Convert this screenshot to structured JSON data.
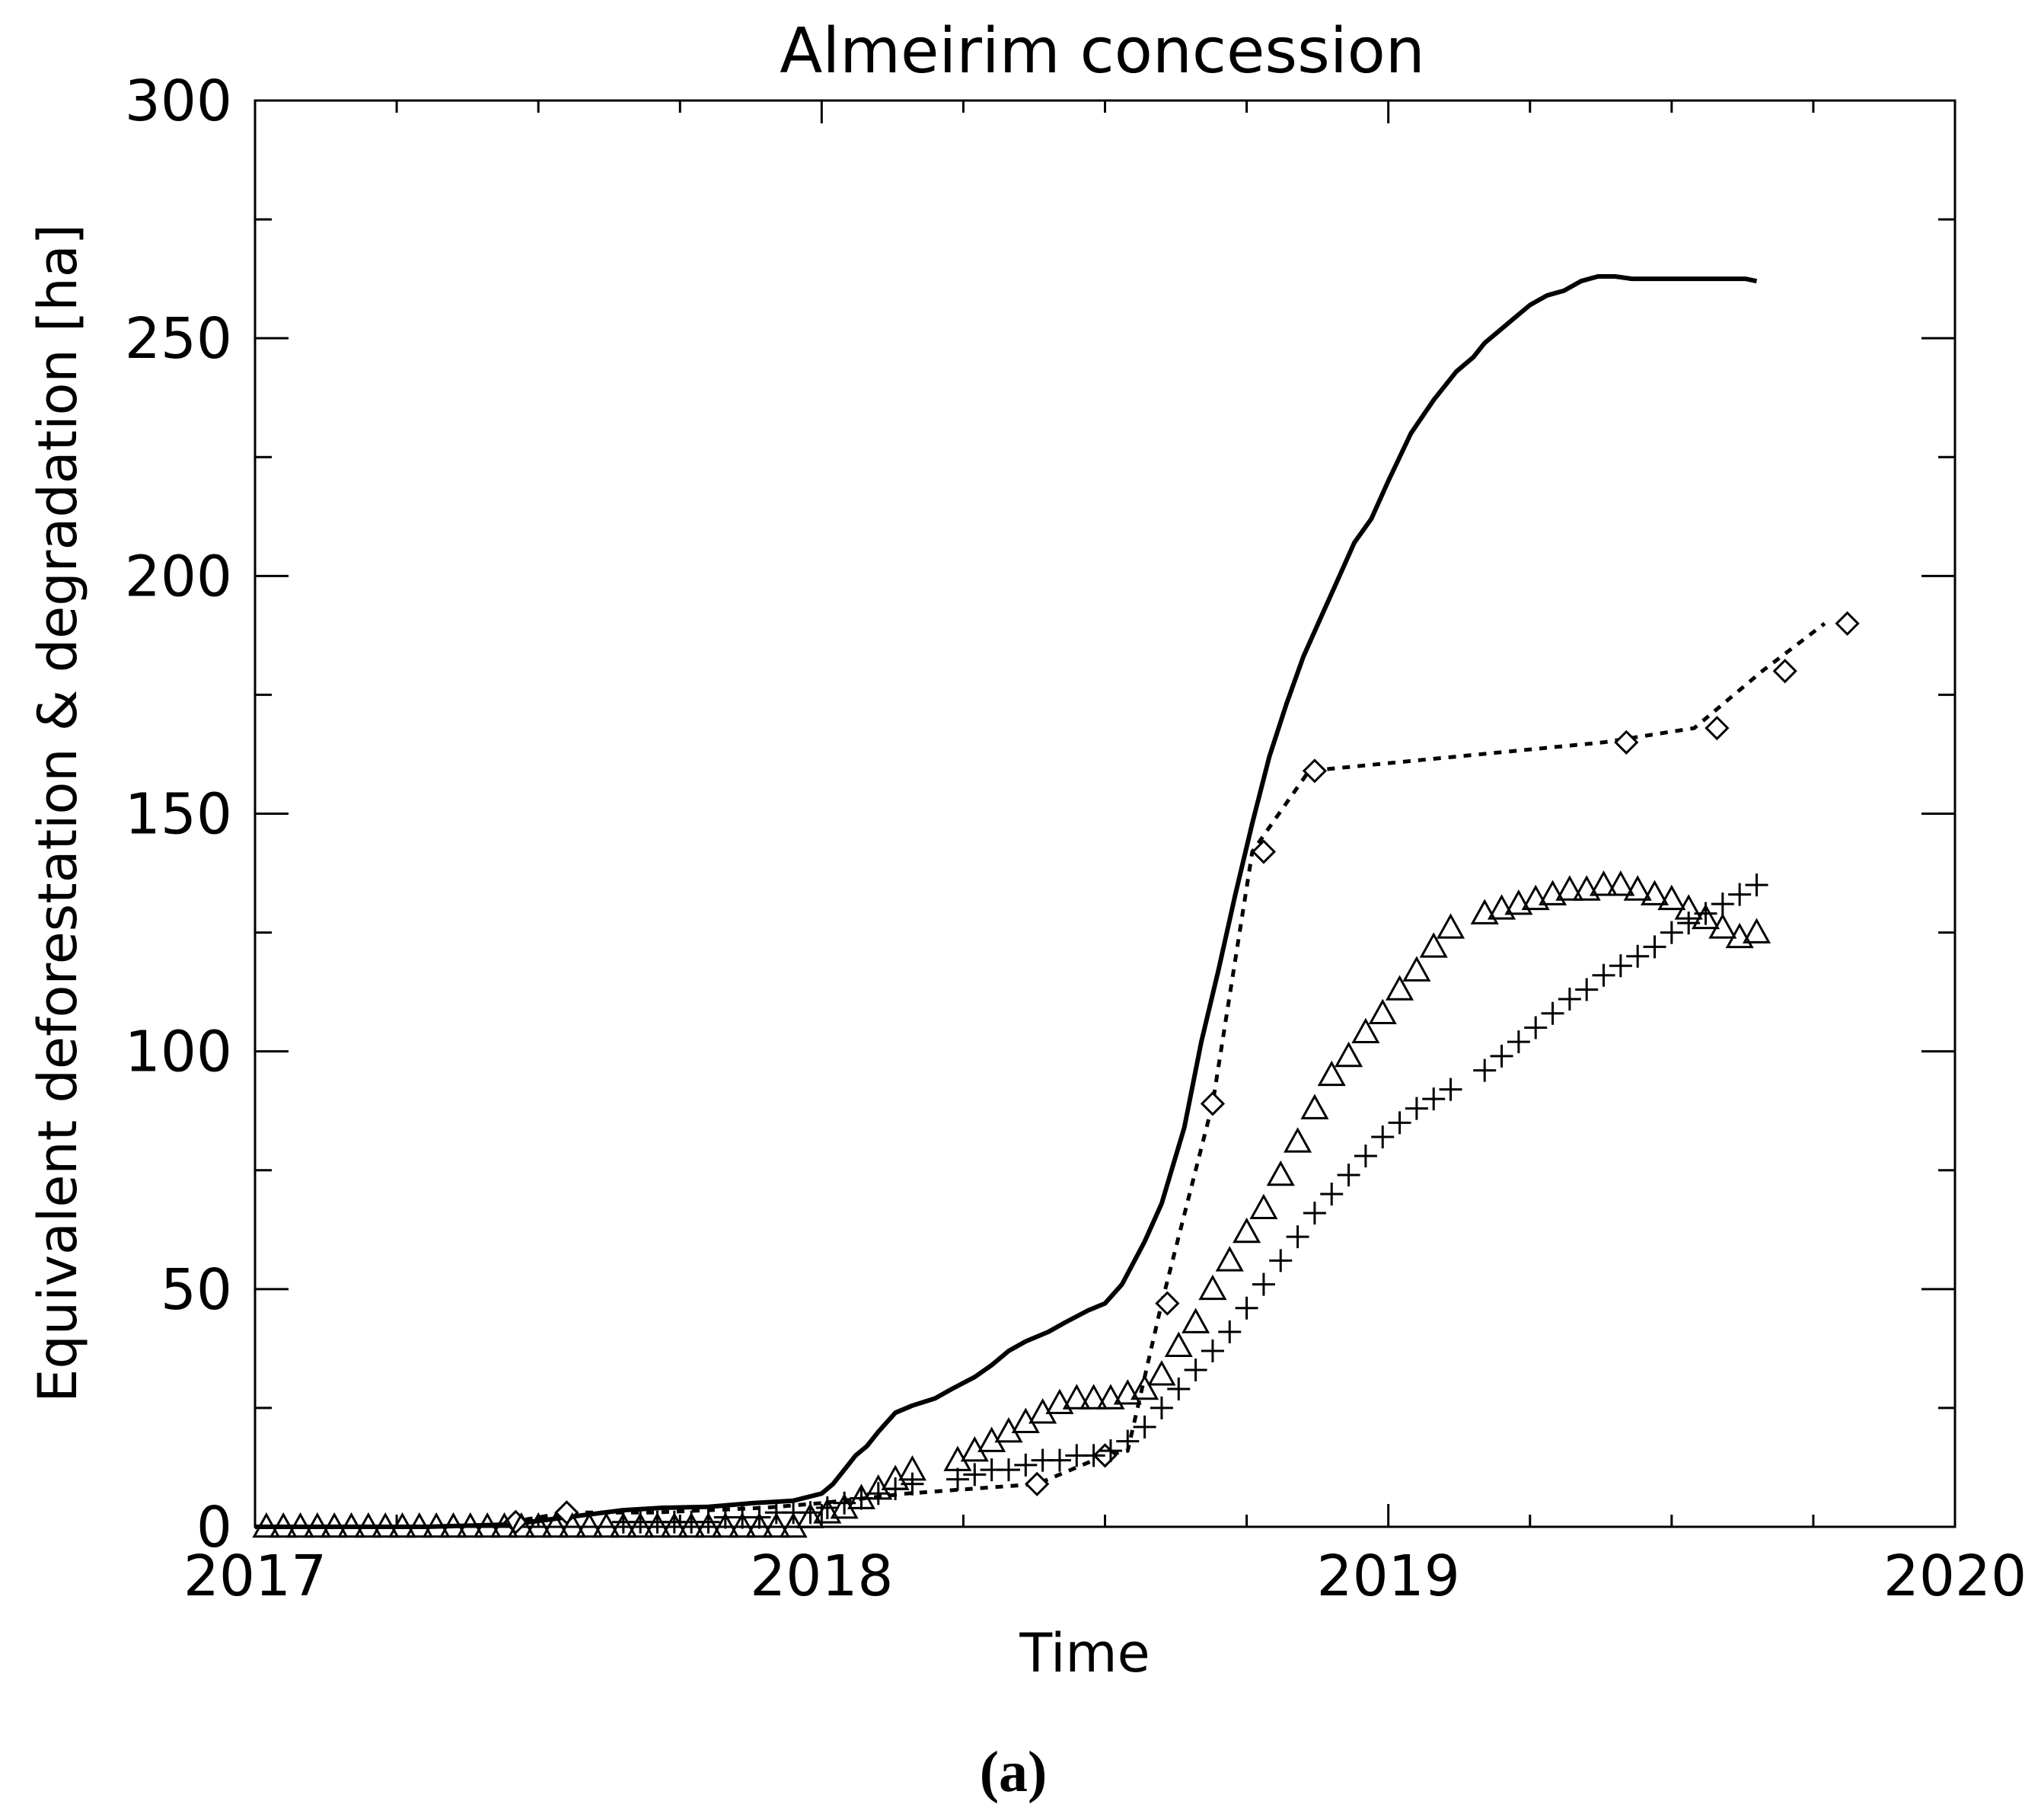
{
  "chart_data": {
    "type": "line",
    "title": "Almeirim concession",
    "xlabel": "Time",
    "ylabel": "Equivalent deforestation & degradation [ha]",
    "panel_label": "(a)",
    "xlim": [
      2017,
      2020
    ],
    "ylim": [
      0,
      300
    ],
    "x_ticks": [
      2017,
      2018,
      2019,
      2020
    ],
    "x_tick_labels": [
      "2017",
      "2018",
      "2019",
      "2020"
    ],
    "x_minor_step": 0.25,
    "y_ticks": [
      0,
      50,
      100,
      150,
      200,
      250,
      300
    ],
    "y_tick_labels": [
      "0",
      "50",
      "100",
      "150",
      "200",
      "250",
      "300"
    ],
    "y_minor_step": 25,
    "grid": false,
    "series": [
      {
        "name": "solid line",
        "style": "solid",
        "marker": "none",
        "x": [
          2017.0,
          2017.3,
          2017.45,
          2017.55,
          2017.65,
          2017.72,
          2017.8,
          2017.88,
          2017.95,
          2018.0,
          2018.02,
          2018.04,
          2018.06,
          2018.08,
          2018.1,
          2018.13,
          2018.16,
          2018.2,
          2018.23,
          2018.27,
          2018.3,
          2018.33,
          2018.36,
          2018.4,
          2018.43,
          2018.47,
          2018.5,
          2018.53,
          2018.57,
          2018.6,
          2018.64,
          2018.67,
          2018.7,
          2018.73,
          2018.76,
          2018.79,
          2018.82,
          2018.85,
          2018.88,
          2018.91,
          2018.94,
          2018.97,
          2019.0,
          2019.04,
          2019.08,
          2019.1,
          2019.12,
          2019.15,
          2019.17,
          2019.19,
          2019.22,
          2019.25,
          2019.28,
          2019.31,
          2019.34,
          2019.37,
          2019.4,
          2019.43,
          2019.46,
          2019.49,
          2019.52,
          2019.55,
          2019.58,
          2019.61,
          2019.63,
          2019.65
        ],
        "y": [
          0,
          0,
          0.5,
          2,
          3.5,
          4,
          4.2,
          5,
          5.5,
          7,
          9,
          12,
          15,
          17,
          20,
          24,
          25.5,
          27,
          29,
          31.5,
          34,
          37,
          39,
          41,
          43,
          45.5,
          47,
          51,
          60,
          68,
          84,
          102,
          117,
          133,
          148,
          162,
          173,
          183,
          191,
          199,
          207,
          212,
          220,
          230,
          237,
          240,
          243,
          246,
          249,
          251,
          254,
          257,
          259,
          260,
          262,
          263,
          263,
          262.5,
          262.5,
          262.5,
          262.5,
          262.5,
          262.5,
          262.5,
          262.5,
          262
        ]
      },
      {
        "name": "dashed line with diamonds",
        "style": "dashed",
        "marker": "diamond",
        "x": [
          2017.45,
          2017.55,
          2017.7,
          2017.9,
          2018.0,
          2018.15,
          2018.38,
          2018.5,
          2018.54,
          2018.6,
          2018.69,
          2018.76,
          2018.86,
          2019.38,
          2019.54,
          2019.66,
          2019.77
        ],
        "y": [
          1,
          3,
          3,
          4,
          5,
          7,
          9,
          15,
          16,
          47,
          89,
          142,
          159,
          165,
          168,
          180,
          190
        ],
        "marker_x": [
          2017.46,
          2017.55,
          2018.38,
          2018.5,
          2018.61,
          2018.69,
          2018.78,
          2018.87,
          2019.42,
          2019.58,
          2019.7,
          2019.81
        ],
        "marker_y": [
          1,
          3,
          9,
          15,
          47,
          89,
          142,
          159,
          165,
          168,
          180,
          190
        ]
      },
      {
        "name": "triangles",
        "style": "none",
        "marker": "triangle",
        "x": [
          2017.02,
          2017.05,
          2017.08,
          2017.11,
          2017.14,
          2017.17,
          2017.2,
          2017.23,
          2017.26,
          2017.29,
          2017.32,
          2017.35,
          2017.38,
          2017.41,
          2017.44,
          2017.47,
          2017.5,
          2017.53,
          2017.56,
          2017.59,
          2017.62,
          2017.65,
          2017.68,
          2017.71,
          2017.74,
          2017.77,
          2017.8,
          2017.83,
          2017.86,
          2017.89,
          2017.92,
          2017.95,
          2017.98,
          2018.01,
          2018.04,
          2018.07,
          2018.1,
          2018.13,
          2018.16,
          2018.24,
          2018.27,
          2018.3,
          2018.33,
          2018.36,
          2018.39,
          2018.42,
          2018.45,
          2018.48,
          2018.51,
          2018.54,
          2018.57,
          2018.6,
          2018.63,
          2018.66,
          2018.69,
          2018.72,
          2018.75,
          2018.78,
          2018.81,
          2018.84,
          2018.87,
          2018.9,
          2018.93,
          2018.96,
          2018.99,
          2019.02,
          2019.05,
          2019.08,
          2019.11,
          2019.17,
          2019.2,
          2019.23,
          2019.26,
          2019.29,
          2019.32,
          2019.35,
          2019.38,
          2019.41,
          2019.44,
          2019.47,
          2019.5,
          2019.53,
          2019.56,
          2019.59,
          2019.62,
          2019.65
        ],
        "y": [
          0,
          0,
          0,
          0,
          0,
          0,
          0,
          0,
          0,
          0,
          0,
          0,
          0,
          0,
          0,
          0,
          0,
          0,
          0,
          0,
          0,
          0,
          0,
          0,
          0,
          0,
          0,
          0,
          0,
          0,
          0,
          0,
          2,
          3,
          4,
          6,
          8,
          10,
          12,
          14,
          16,
          18,
          20,
          22,
          24,
          26,
          27,
          27,
          27,
          28,
          29,
          32,
          38,
          43,
          50,
          56,
          62,
          67,
          74,
          81,
          88,
          95,
          99,
          104,
          108,
          113,
          117,
          122,
          126,
          129,
          130,
          131,
          132,
          133,
          134,
          134,
          135,
          135,
          134,
          133,
          132,
          130,
          128,
          126,
          124,
          125
        ],
        "x_points_note": ""
      },
      {
        "name": "plus markers",
        "style": "none",
        "marker": "plus",
        "x": [
          2017.65,
          2017.68,
          2017.71,
          2017.74,
          2017.77,
          2017.8,
          2017.83,
          2017.86,
          2017.89,
          2017.92,
          2017.95,
          2017.98,
          2018.01,
          2018.04,
          2018.07,
          2018.1,
          2018.13,
          2018.16,
          2018.24,
          2018.27,
          2018.3,
          2018.33,
          2018.36,
          2018.39,
          2018.42,
          2018.45,
          2018.48,
          2018.51,
          2018.54,
          2018.57,
          2018.6,
          2018.63,
          2018.66,
          2018.69,
          2018.72,
          2018.75,
          2018.78,
          2018.81,
          2018.84,
          2018.87,
          2018.9,
          2018.93,
          2018.96,
          2018.99,
          2019.02,
          2019.05,
          2019.08,
          2019.11,
          2019.17,
          2019.2,
          2019.23,
          2019.26,
          2019.29,
          2019.32,
          2019.35,
          2019.38,
          2019.41,
          2019.44,
          2019.47,
          2019.5,
          2019.53,
          2019.56,
          2019.59,
          2019.62,
          2019.65
        ],
        "y": [
          1,
          1,
          1,
          1,
          1,
          1,
          2,
          2,
          2,
          3,
          3,
          3,
          4,
          5,
          6,
          7,
          8,
          9,
          10,
          11,
          12,
          12,
          13,
          14,
          14,
          15,
          15,
          16,
          18,
          21,
          25,
          29,
          33,
          37,
          41,
          46,
          51,
          56,
          61,
          66,
          70,
          74,
          78,
          82,
          85,
          88,
          90,
          92,
          96,
          99,
          102,
          105,
          108,
          111,
          113,
          116,
          118,
          120,
          122,
          125,
          127,
          129,
          131,
          133,
          135
        ]
      }
    ]
  }
}
